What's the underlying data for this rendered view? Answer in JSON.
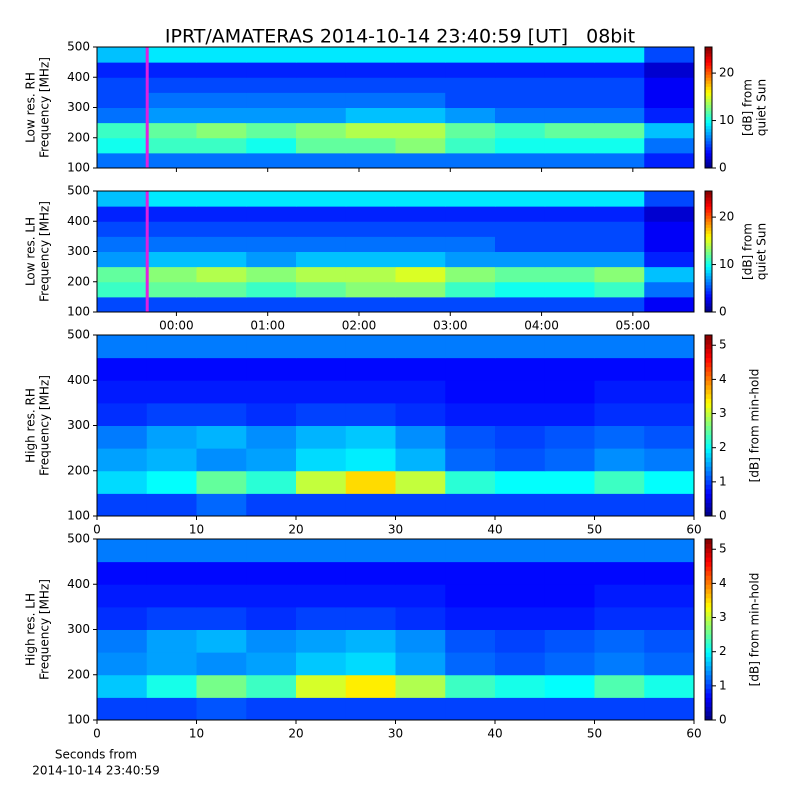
{
  "title": "IPRT/AMATERAS 2014-10-14 23:40:59 [UT]   08bit",
  "chart_data": [
    {
      "type": "heatmap",
      "ylabel": [
        "Low res. RH",
        "Frequency [MHz]"
      ],
      "xlim": [
        -0.87,
        5.67
      ],
      "ylim": [
        100,
        500
      ],
      "yticks": [
        100,
        200,
        300,
        400,
        500
      ],
      "xticks": [
        0,
        1,
        2,
        3,
        4,
        5
      ],
      "x_bins": [
        -0.87,
        -0.325,
        0.22,
        0.765,
        1.31,
        1.855,
        2.4,
        2.945,
        3.49,
        4.035,
        4.58,
        5.125,
        5.67
      ],
      "y_bins": [
        100,
        150,
        200,
        250,
        300,
        350,
        400,
        450,
        500
      ],
      "z": [
        [
          6,
          6,
          6,
          6,
          6,
          6,
          6,
          6,
          6,
          6,
          6,
          4
        ],
        [
          10,
          11,
          11,
          10,
          12,
          12,
          13,
          11,
          10,
          10,
          10,
          6
        ],
        [
          11,
          12,
          13,
          12,
          13,
          14,
          14,
          12,
          11,
          12,
          12,
          8
        ],
        [
          6,
          7,
          7,
          7,
          7,
          8,
          8,
          7,
          6,
          6,
          6,
          4
        ],
        [
          5,
          6,
          6,
          6,
          6,
          6,
          6,
          5,
          5,
          5,
          5,
          3
        ],
        [
          5,
          5,
          5,
          5,
          5,
          5,
          5,
          5,
          5,
          5,
          5,
          3
        ],
        [
          4,
          4,
          4,
          4,
          4,
          4,
          4,
          4,
          4,
          4,
          4,
          2
        ],
        [
          8,
          9,
          9,
          9,
          9,
          9,
          9,
          9,
          9,
          9,
          9,
          5
        ]
      ],
      "marker_x": -0.32,
      "marker_color": "#e020e0",
      "clim": [
        0,
        25.5
      ],
      "cticks": [
        0,
        10,
        20
      ],
      "clabel": [
        "[dB] from",
        "quiet Sun"
      ]
    },
    {
      "type": "heatmap",
      "ylabel": [
        "Low res. LH",
        "Frequency [MHz]"
      ],
      "xlim": [
        -0.87,
        5.67
      ],
      "ylim": [
        100,
        500
      ],
      "yticks": [
        100,
        200,
        300,
        400,
        500
      ],
      "xticks": [
        {
          "value": 0,
          "label": "00:00"
        },
        {
          "value": 1,
          "label": "01:00"
        },
        {
          "value": 2,
          "label": "02:00"
        },
        {
          "value": 3,
          "label": "03:00"
        },
        {
          "value": 4,
          "label": "04:00"
        },
        {
          "value": 5,
          "label": "05:00"
        }
      ],
      "x_bins": [
        -0.87,
        -0.325,
        0.22,
        0.765,
        1.31,
        1.855,
        2.4,
        2.945,
        3.49,
        4.035,
        4.58,
        5.125,
        5.67
      ],
      "y_bins": [
        100,
        150,
        200,
        250,
        300,
        350,
        400,
        450,
        500
      ],
      "z": [
        [
          5,
          5,
          5,
          5,
          5,
          5,
          5,
          5,
          5,
          5,
          5,
          3
        ],
        [
          11,
          12,
          12,
          11,
          12,
          13,
          13,
          11,
          10,
          10,
          11,
          6
        ],
        [
          12,
          13,
          14,
          13,
          14,
          14,
          15,
          13,
          12,
          12,
          13,
          8
        ],
        [
          7,
          8,
          8,
          7,
          8,
          8,
          8,
          7,
          7,
          7,
          7,
          4
        ],
        [
          6,
          6,
          6,
          6,
          6,
          6,
          6,
          6,
          5,
          5,
          5,
          3
        ],
        [
          5,
          5,
          5,
          5,
          5,
          5,
          5,
          5,
          5,
          5,
          5,
          3
        ],
        [
          4,
          4,
          4,
          4,
          4,
          4,
          4,
          4,
          4,
          4,
          4,
          2
        ],
        [
          8,
          9,
          9,
          9,
          9,
          9,
          9,
          9,
          9,
          9,
          9,
          5
        ]
      ],
      "marker_x": -0.32,
      "marker_color": "#e020e0",
      "clim": [
        0,
        25.5
      ],
      "cticks": [
        0,
        10,
        20
      ],
      "clabel": [
        "[dB] from",
        "quiet Sun"
      ]
    },
    {
      "type": "heatmap",
      "ylabel": [
        "High res. RH",
        "Frequency [MHz]"
      ],
      "xlim": [
        0,
        60
      ],
      "ylim": [
        100,
        500
      ],
      "yticks": [
        100,
        200,
        300,
        400,
        500
      ],
      "xticks": [
        0,
        10,
        20,
        30,
        40,
        50,
        60
      ],
      "x_bins": [
        0,
        5,
        10,
        15,
        20,
        25,
        30,
        35,
        40,
        45,
        50,
        55,
        60
      ],
      "y_bins": [
        100,
        150,
        200,
        250,
        300,
        350,
        400,
        450,
        500
      ],
      "z": [
        [
          1,
          1,
          1.2,
          1,
          1,
          1,
          1,
          1,
          1,
          1,
          1,
          1
        ],
        [
          1.8,
          2,
          2.5,
          2.2,
          3,
          3.5,
          3,
          2.2,
          2,
          2,
          2.3,
          2
        ],
        [
          1.5,
          1.6,
          1.4,
          1.5,
          1.8,
          1.9,
          1.6,
          1.2,
          1.1,
          1.2,
          1.4,
          1.3
        ],
        [
          1.3,
          1.5,
          1.6,
          1.4,
          1.6,
          1.7,
          1.4,
          1.1,
          1,
          1.1,
          1.2,
          1.1
        ],
        [
          0.9,
          1,
          1,
          0.9,
          1,
          1,
          0.9,
          0.8,
          0.8,
          0.8,
          0.9,
          0.9
        ],
        [
          0.8,
          0.8,
          0.8,
          0.8,
          0.8,
          0.8,
          0.8,
          0.7,
          0.7,
          0.7,
          0.8,
          0.8
        ],
        [
          0.7,
          0.7,
          0.7,
          0.7,
          0.7,
          0.7,
          0.7,
          0.7,
          0.7,
          0.7,
          0.7,
          0.7
        ],
        [
          1.3,
          1.3,
          1.3,
          1.3,
          1.3,
          1.3,
          1.3,
          1.3,
          1.3,
          1.3,
          1.3,
          1.3
        ]
      ],
      "clim": [
        0,
        5.3
      ],
      "cticks": [
        0,
        1,
        2,
        3,
        4,
        5
      ],
      "clabel": [
        "[dB] from min-hold"
      ]
    },
    {
      "type": "heatmap",
      "ylabel": [
        "High res. LH",
        "Frequency [MHz]"
      ],
      "xlim": [
        0,
        60
      ],
      "ylim": [
        100,
        500
      ],
      "yticks": [
        100,
        200,
        300,
        400,
        500
      ],
      "xticks": [
        0,
        10,
        20,
        30,
        40,
        50,
        60
      ],
      "xlabel": [
        "Seconds from",
        "2014-10-14 23:40:59"
      ],
      "x_bins": [
        0,
        5,
        10,
        15,
        20,
        25,
        30,
        35,
        40,
        45,
        50,
        55,
        60
      ],
      "y_bins": [
        100,
        150,
        200,
        250,
        300,
        350,
        400,
        450,
        500
      ],
      "z": [
        [
          1,
          1,
          1.1,
          1,
          1,
          1,
          1,
          1,
          1,
          1,
          1,
          1
        ],
        [
          1.7,
          2.1,
          2.6,
          2.3,
          3.1,
          3.4,
          2.9,
          2.3,
          2.1,
          2,
          2.4,
          2.1
        ],
        [
          1.4,
          1.5,
          1.4,
          1.5,
          1.7,
          1.8,
          1.5,
          1.2,
          1.1,
          1.2,
          1.3,
          1.2
        ],
        [
          1.3,
          1.5,
          1.6,
          1.4,
          1.5,
          1.6,
          1.4,
          1.1,
          1,
          1.1,
          1.2,
          1.1
        ],
        [
          0.9,
          1,
          1,
          0.9,
          1,
          1,
          0.9,
          0.8,
          0.8,
          0.8,
          0.9,
          0.9
        ],
        [
          0.8,
          0.8,
          0.8,
          0.8,
          0.8,
          0.8,
          0.8,
          0.7,
          0.7,
          0.7,
          0.8,
          0.8
        ],
        [
          0.7,
          0.7,
          0.7,
          0.7,
          0.7,
          0.7,
          0.7,
          0.7,
          0.7,
          0.7,
          0.7,
          0.7
        ],
        [
          1.3,
          1.3,
          1.3,
          1.3,
          1.3,
          1.3,
          1.3,
          1.3,
          1.3,
          1.3,
          1.3,
          1.3
        ]
      ],
      "clim": [
        0,
        5.3
      ],
      "cticks": [
        0,
        1,
        2,
        3,
        4,
        5
      ],
      "clabel": [
        "[dB] from min-hold"
      ]
    }
  ]
}
